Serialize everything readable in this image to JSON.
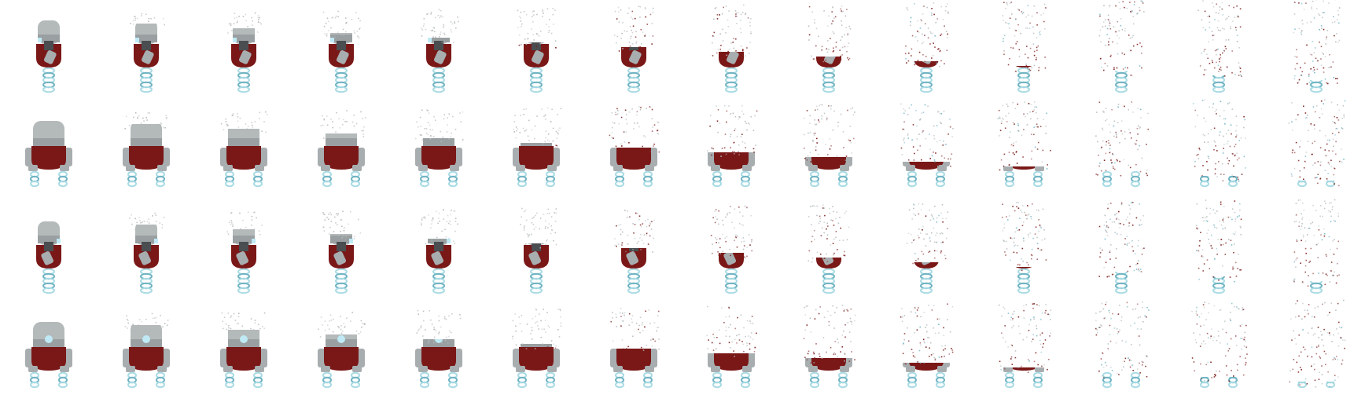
{
  "sheet": {
    "columns": 14,
    "rows": [
      {
        "name": "side-left",
        "view": "side",
        "facing": "left"
      },
      {
        "name": "back",
        "view": "wide",
        "facing": "back"
      },
      {
        "name": "side-right",
        "view": "side",
        "facing": "right"
      },
      {
        "name": "front",
        "view": "wide",
        "facing": "front"
      }
    ],
    "animation": "dissolve",
    "palette": {
      "head": "#b4b9ba",
      "head_shade": "#9aa0a2",
      "body": "#7a1818",
      "body_shade": "#5c1010",
      "arm": "#a8adaf",
      "visor": "#4a4e51",
      "coil": "#a9dbe4",
      "coil_dark": "#6fb3c2",
      "eye": "#bfeaf5"
    }
  }
}
